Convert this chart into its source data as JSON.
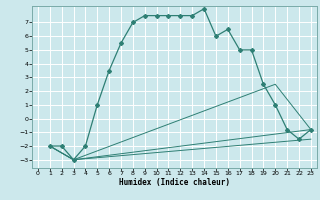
{
  "title": "",
  "xlabel": "Humidex (Indice chaleur)",
  "background_color": "#cce8ec",
  "grid_color": "#ffffff",
  "line_color": "#2e7f74",
  "xlim": [
    -0.5,
    23.5
  ],
  "ylim": [
    -3.6,
    8.2
  ],
  "yticks": [
    -3,
    -2,
    -1,
    0,
    1,
    2,
    3,
    4,
    5,
    6,
    7
  ],
  "xticks": [
    0,
    1,
    2,
    3,
    4,
    5,
    6,
    7,
    8,
    9,
    10,
    11,
    12,
    13,
    14,
    15,
    16,
    17,
    18,
    19,
    20,
    21,
    22,
    23
  ],
  "line1": {
    "x": [
      1,
      2,
      3,
      4,
      5,
      6,
      7,
      8,
      9,
      10,
      11,
      12,
      13,
      14,
      15,
      16,
      17,
      18,
      19,
      20,
      21,
      22,
      23
    ],
    "y": [
      -2,
      -2,
      -3,
      -2,
      1,
      3.5,
      5.5,
      7,
      7.5,
      7.5,
      7.5,
      7.5,
      7.5,
      8,
      6,
      6.5,
      5,
      5,
      2.5,
      1,
      -0.8,
      -1.5,
      -0.8
    ]
  },
  "line2": {
    "x": [
      1,
      3,
      20,
      23
    ],
    "y": [
      -2,
      -3,
      2.5,
      -0.8
    ]
  },
  "line3": {
    "x": [
      1,
      3,
      23
    ],
    "y": [
      -2,
      -3,
      -0.8
    ]
  },
  "line4": {
    "x": [
      1,
      3,
      23
    ],
    "y": [
      -2,
      -3,
      -1.5
    ]
  }
}
